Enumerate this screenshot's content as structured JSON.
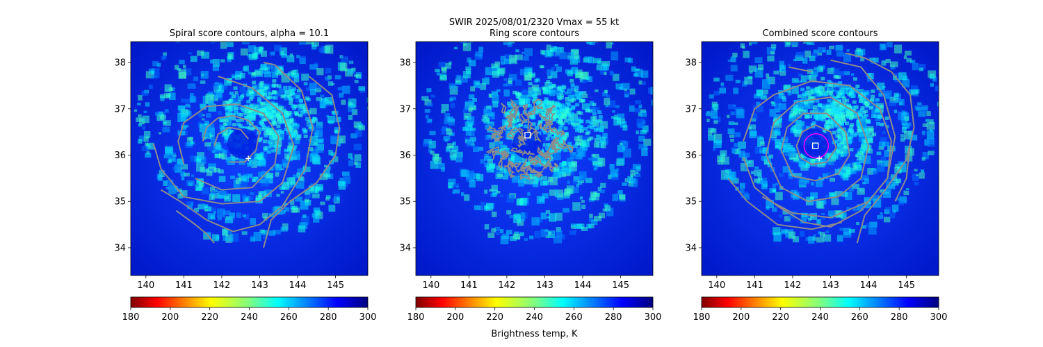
{
  "figure": {
    "suptitle_line1": "SWIR  2025/08/01/2320    Vmax = 55 kt",
    "colorbar_label": "Brightness temp, K"
  },
  "colors": {
    "contour": "#8c8c8c",
    "center_marker": "#ffffff",
    "ring_circle": "#ff00ff"
  },
  "chart_data": [
    {
      "type": "heatmap",
      "title": "Spiral score contours, alpha = 10.1",
      "xlim": [
        139.6,
        145.85
      ],
      "ylim": [
        33.4,
        38.45
      ],
      "xticks": [
        140,
        141,
        142,
        143,
        144,
        145
      ],
      "yticks": [
        34,
        35,
        36,
        37,
        38
      ],
      "colormap": "jet_r",
      "clim": [
        180,
        300
      ],
      "colorbar_ticks": [
        180,
        200,
        220,
        240,
        260,
        280,
        300
      ],
      "contours": [
        [
          [
            141.5,
            36.3
          ],
          [
            141.6,
            36.6
          ],
          [
            141.9,
            36.8
          ],
          [
            142.3,
            36.85
          ],
          [
            142.7,
            36.75
          ],
          [
            143.0,
            36.5
          ],
          [
            142.9,
            36.1
          ],
          [
            142.6,
            35.85
          ],
          [
            142.2,
            35.85
          ]
        ],
        [
          [
            141.8,
            36.2
          ],
          [
            141.9,
            36.45
          ],
          [
            142.2,
            36.6
          ],
          [
            142.5,
            36.55
          ],
          [
            142.7,
            36.35
          ]
        ],
        [
          [
            141.0,
            35.8
          ],
          [
            140.85,
            36.3
          ],
          [
            141.0,
            36.7
          ],
          [
            141.6,
            37.05
          ],
          [
            142.4,
            37.1
          ],
          [
            143.1,
            36.9
          ],
          [
            143.5,
            36.4
          ],
          [
            143.4,
            35.8
          ],
          [
            142.8,
            35.3
          ],
          [
            142.0,
            35.25
          ],
          [
            141.3,
            35.5
          ]
        ],
        [
          [
            141.9,
            37.7
          ],
          [
            142.8,
            37.45
          ],
          [
            143.6,
            36.9
          ],
          [
            143.9,
            36.2
          ],
          [
            143.6,
            35.4
          ],
          [
            143.0,
            35.0
          ],
          [
            142.0,
            34.95
          ],
          [
            141.0,
            35.1
          ],
          [
            140.4,
            35.7
          ],
          [
            140.2,
            36.25
          ]
        ],
        [
          [
            140.4,
            35.25
          ],
          [
            140.9,
            35.0
          ],
          [
            141.6,
            34.6
          ],
          [
            142.3,
            34.35
          ],
          [
            143.0,
            34.5
          ],
          [
            143.6,
            34.9
          ],
          [
            144.2,
            35.7
          ],
          [
            144.4,
            36.6
          ],
          [
            144.1,
            37.4
          ],
          [
            143.4,
            37.95
          ],
          [
            143.1,
            38.0
          ]
        ],
        [
          [
            140.8,
            34.8
          ],
          [
            141.3,
            34.5
          ],
          [
            141.6,
            34.3
          ],
          [
            141.8,
            34.1
          ]
        ],
        [
          [
            143.1,
            34.0
          ],
          [
            143.3,
            34.6
          ],
          [
            143.8,
            35.0
          ],
          [
            144.5,
            35.4
          ],
          [
            145.0,
            36.0
          ],
          [
            145.1,
            36.6
          ],
          [
            144.9,
            37.3
          ],
          [
            144.3,
            37.7
          ]
        ]
      ],
      "marker": {
        "symbol": "+",
        "x": 142.7,
        "y": 35.93
      }
    },
    {
      "type": "heatmap",
      "title": "Ring score contours",
      "xlim": [
        139.6,
        145.85
      ],
      "ylim": [
        33.4,
        38.45
      ],
      "xticks": [
        140,
        141,
        142,
        143,
        144,
        145
      ],
      "yticks": [
        34,
        35,
        36,
        37,
        38
      ],
      "colormap": "jet_r",
      "clim": [
        180,
        300
      ],
      "colorbar_ticks": [
        180,
        200,
        220,
        240,
        260,
        280,
        300
      ],
      "noisy_contour_region": {
        "cx": 142.55,
        "cy": 36.3,
        "rx": 1.0,
        "ry": 0.9
      },
      "marker": {
        "symbol": "square",
        "x": 142.55,
        "y": 36.43
      }
    },
    {
      "type": "heatmap",
      "title": "Combined score contours",
      "xlim": [
        139.6,
        145.85
      ],
      "ylim": [
        33.4,
        38.45
      ],
      "xticks": [
        140,
        141,
        142,
        143,
        144,
        145
      ],
      "yticks": [
        34,
        35,
        36,
        37,
        38
      ],
      "colormap": "jet_r",
      "clim": [
        180,
        300
      ],
      "colorbar_ticks": [
        180,
        200,
        220,
        240,
        260,
        280,
        300
      ],
      "contours": [
        [
          [
            142.1,
            36.2
          ],
          [
            142.25,
            36.5
          ],
          [
            142.6,
            36.65
          ],
          [
            143.0,
            36.5
          ],
          [
            143.15,
            36.15
          ],
          [
            142.9,
            35.85
          ],
          [
            142.5,
            35.8
          ],
          [
            142.2,
            35.95
          ],
          [
            142.1,
            36.2
          ]
        ],
        [
          [
            141.7,
            36.1
          ],
          [
            141.85,
            36.6
          ],
          [
            142.3,
            36.9
          ],
          [
            142.9,
            36.9
          ],
          [
            143.4,
            36.5
          ],
          [
            143.5,
            36.0
          ],
          [
            143.2,
            35.6
          ],
          [
            142.6,
            35.45
          ],
          [
            142.0,
            35.55
          ],
          [
            141.7,
            36.1
          ]
        ],
        [
          [
            141.3,
            36.0
          ],
          [
            141.5,
            36.7
          ],
          [
            142.1,
            37.15
          ],
          [
            143.0,
            37.25
          ],
          [
            143.7,
            36.9
          ],
          [
            144.0,
            36.2
          ],
          [
            143.8,
            35.5
          ],
          [
            143.2,
            35.1
          ],
          [
            142.4,
            35.0
          ],
          [
            141.7,
            35.3
          ],
          [
            141.3,
            36.0
          ]
        ],
        [
          [
            140.7,
            36.3
          ],
          [
            141.0,
            37.0
          ],
          [
            141.5,
            37.3
          ],
          [
            142.5,
            37.6
          ],
          [
            143.5,
            37.5
          ],
          [
            144.3,
            37.0
          ],
          [
            144.6,
            36.3
          ],
          [
            144.5,
            35.5
          ],
          [
            144.0,
            35.0
          ],
          [
            143.0,
            34.65
          ],
          [
            142.0,
            34.75
          ],
          [
            141.2,
            35.1
          ]
        ],
        [
          [
            140.7,
            35.95
          ],
          [
            141.0,
            35.3
          ],
          [
            141.6,
            34.9
          ],
          [
            142.3,
            34.55
          ],
          [
            143.0,
            34.45
          ],
          [
            143.8,
            34.8
          ],
          [
            144.5,
            35.5
          ],
          [
            144.7,
            36.4
          ],
          [
            144.4,
            37.3
          ],
          [
            143.8,
            37.9
          ],
          [
            143.0,
            38.05
          ]
        ],
        [
          [
            141.9,
            37.9
          ],
          [
            142.5,
            37.8
          ]
        ],
        [
          [
            140.3,
            35.5
          ],
          [
            140.8,
            35.0
          ],
          [
            141.6,
            34.5
          ],
          [
            142.5,
            34.4
          ],
          [
            143.3,
            34.55
          ]
        ],
        [
          [
            143.7,
            34.1
          ],
          [
            143.9,
            34.7
          ],
          [
            144.4,
            35.2
          ],
          [
            145.0,
            35.9
          ],
          [
            145.2,
            36.6
          ],
          [
            145.1,
            37.3
          ],
          [
            144.6,
            37.8
          ],
          [
            143.9,
            38.1
          ],
          [
            143.4,
            38.2
          ]
        ],
        [
          [
            145.1,
            36.3
          ],
          [
            145.0,
            35.5
          ],
          [
            144.7,
            35.0
          ]
        ]
      ],
      "ring_circle": {
        "cx": 142.62,
        "cy": 36.2,
        "r": 0.32
      },
      "marker": {
        "symbol": "square",
        "x": 142.6,
        "y": 36.2
      },
      "marker2": {
        "symbol": "+",
        "x": 142.7,
        "y": 35.93
      }
    }
  ]
}
